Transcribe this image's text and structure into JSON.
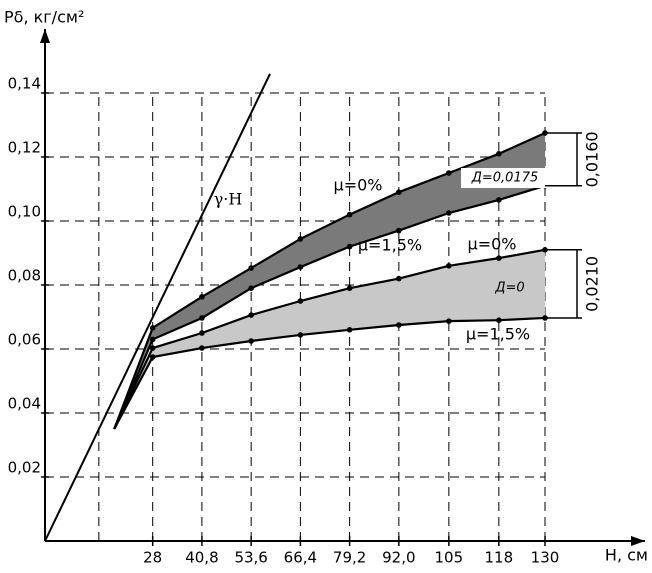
{
  "chart_data": {
    "type": "line",
    "y_label": "Рδ, кг/см²",
    "x_label": "Н, см",
    "x": [
      18,
      28,
      40.8,
      53.6,
      66.4,
      79.2,
      92.0,
      105,
      118,
      130
    ],
    "series": [
      {
        "name": "μ=0%",
        "color": "#000000",
        "values": [
          0.035,
          0.0666,
          0.0763,
          0.0853,
          0.0944,
          0.102,
          0.109,
          0.115,
          0.121,
          0.1275
        ]
      },
      {
        "name": "μ=1,5%",
        "color": "#000000",
        "values": [
          0.035,
          0.063,
          0.0697,
          0.079,
          0.0856,
          0.092,
          0.097,
          0.1025,
          0.1066,
          0.111
        ]
      },
      {
        "name": "μ=0%",
        "color": "#000000",
        "values": [
          0.035,
          0.0603,
          0.065,
          0.0706,
          0.075,
          0.079,
          0.082,
          0.086,
          0.0884,
          0.091
        ]
      },
      {
        "name": "μ=1,5%",
        "color": "#000000",
        "values": [
          0.035,
          0.0575,
          0.0603,
          0.0625,
          0.0644,
          0.066,
          0.0675,
          0.0687,
          0.069,
          0.0697
        ]
      }
    ],
    "bands": [
      {
        "name": "Д=0,0175",
        "series": [
          0,
          1
        ],
        "color": "#7a7a7a"
      },
      {
        "name": "Д=0",
        "series": [
          2,
          3
        ],
        "color": "#c8c8c8"
      }
    ],
    "dimensions": [
      {
        "label": "0,0160",
        "series": [
          0,
          1
        ]
      },
      {
        "label": "0,0210",
        "series": [
          2,
          3
        ]
      }
    ],
    "gamma_line": {
      "name": "γ·H",
      "x": [
        0,
        58.5
      ],
      "values": [
        0,
        0.146
      ]
    },
    "xlim": [
      0,
      156
    ],
    "ylim": [
      0,
      0.16
    ],
    "xticks": [
      {
        "value": 28,
        "label": "28"
      },
      {
        "value": 40.8,
        "label": "40,8"
      },
      {
        "value": 53.6,
        "label": "53,6"
      },
      {
        "value": 66.4,
        "label": "66,4"
      },
      {
        "value": 79.2,
        "label": "79,2"
      },
      {
        "value": 92.0,
        "label": "92,0"
      },
      {
        "value": 105,
        "label": "105"
      },
      {
        "value": 118,
        "label": "118"
      },
      {
        "value": 130,
        "label": "130"
      }
    ],
    "xgrid": [
      14,
      28,
      40.8,
      53.6,
      66.4,
      79.2,
      92.0,
      105,
      118,
      130
    ],
    "yticks": [
      {
        "value": 0.02,
        "label": "0,02"
      },
      {
        "value": 0.04,
        "label": "0,04"
      },
      {
        "value": 0.06,
        "label": "0,06"
      },
      {
        "value": 0.08,
        "label": "0,08"
      },
      {
        "value": 0.1,
        "label": "0,10"
      },
      {
        "value": 0.12,
        "label": "0,12"
      },
      {
        "value": 0.14,
        "label": "0,14"
      }
    ],
    "grid": true
  }
}
